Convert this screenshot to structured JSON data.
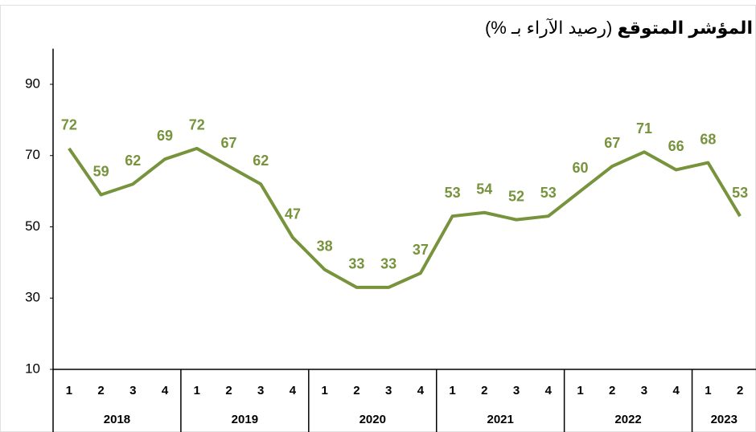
{
  "chart_data": {
    "type": "line",
    "title": "المؤشر المتوقع",
    "subtitle": "(رصيد الآراء بـ %)",
    "categories": [
      "1",
      "2",
      "3",
      "4",
      "1",
      "2",
      "3",
      "4",
      "1",
      "2",
      "3",
      "4",
      "1",
      "2",
      "3",
      "4",
      "1",
      "2",
      "3",
      "4",
      "1",
      "2"
    ],
    "years": [
      "2018",
      "2019",
      "2020",
      "2021",
      "2022",
      "2023"
    ],
    "series": [
      {
        "name": "المؤشر المتوقع",
        "color": "#77933c",
        "values": [
          72,
          59,
          62,
          69,
          72,
          67,
          62,
          47,
          38,
          33,
          33,
          37,
          53,
          54,
          52,
          53,
          60,
          67,
          71,
          66,
          68,
          53
        ]
      }
    ],
    "ylim": [
      10,
      100
    ],
    "yticks": [
      10,
      30,
      50,
      70,
      90
    ]
  }
}
